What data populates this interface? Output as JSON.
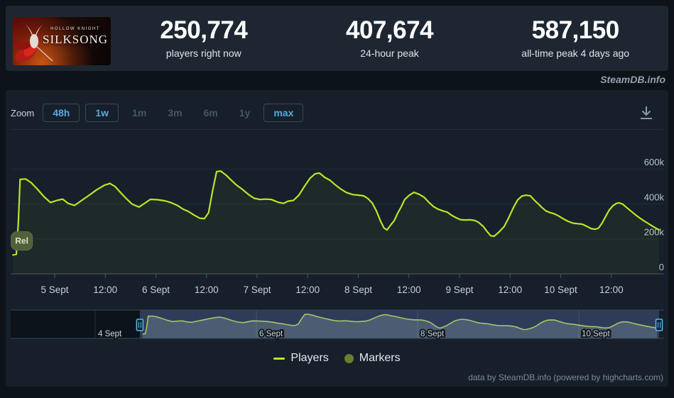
{
  "header": {
    "capsule": {
      "title_top": "HOLLOW KNIGHT",
      "title": "SILKSONG"
    },
    "stats": [
      {
        "value": "250,774",
        "label": "players right now"
      },
      {
        "value": "407,674",
        "label": "24-hour peak"
      },
      {
        "value": "587,150",
        "label": "all-time peak 4 days ago"
      }
    ]
  },
  "watermark": "SteamDB.info",
  "toolbar": {
    "zoom_label": "Zoom",
    "buttons": [
      {
        "label": "48h",
        "enabled": true,
        "active": false
      },
      {
        "label": "1w",
        "enabled": true,
        "active": true
      },
      {
        "label": "1m",
        "enabled": false,
        "active": false
      },
      {
        "label": "3m",
        "enabled": false,
        "active": false
      },
      {
        "label": "6m",
        "enabled": false,
        "active": false
      },
      {
        "label": "1y",
        "enabled": false,
        "active": false
      },
      {
        "label": "max",
        "enabled": true,
        "active": false
      }
    ],
    "download_icon": "download-icon"
  },
  "legend": {
    "items": [
      {
        "label": "Players",
        "symbol": "line",
        "color": "#bce428"
      },
      {
        "label": "Markers",
        "symbol": "circle",
        "color": "#6d7c31"
      }
    ]
  },
  "credits": "data by SteamDB.info (powered by highcharts.com)",
  "chart_data": {
    "type": "line",
    "title": "Concurrent players",
    "xlabel": "",
    "ylabel": "players",
    "x_unit": "hours since 4 Sept 00:00",
    "ylim": [
      0,
      600000
    ],
    "grid": true,
    "legend_position": "bottom",
    "line_color": "#bce428",
    "x_ticks": [
      {
        "h": 24,
        "label": "5 Sept"
      },
      {
        "h": 36,
        "label": "12:00"
      },
      {
        "h": 48,
        "label": "6 Sept"
      },
      {
        "h": 60,
        "label": "12:00"
      },
      {
        "h": 72,
        "label": "7 Sept"
      },
      {
        "h": 84,
        "label": "12:00"
      },
      {
        "h": 96,
        "label": "8 Sept"
      },
      {
        "h": 108,
        "label": "12:00"
      },
      {
        "h": 120,
        "label": "9 Sept"
      },
      {
        "h": 132,
        "label": "12:00"
      },
      {
        "h": 144,
        "label": "10 Sept"
      },
      {
        "h": 156,
        "label": "12:00"
      }
    ],
    "y_ticks": [
      {
        "v": 0,
        "label": "0"
      },
      {
        "v": 200000,
        "label": "200k"
      },
      {
        "v": 400000,
        "label": "400k"
      },
      {
        "v": 600000,
        "label": "600k"
      }
    ],
    "marker": {
      "label": "Rel",
      "h": 16.2,
      "v": 188000
    },
    "navigator": {
      "ticks": [
        {
          "h": 0,
          "label": "4 Sept"
        },
        {
          "h": 48,
          "label": "6 Sept"
        },
        {
          "h": 96,
          "label": "8 Sept"
        },
        {
          "h": 144,
          "label": "10 Sept"
        }
      ],
      "selection": {
        "from_h": 13.3,
        "to_h": 167.9
      }
    },
    "series": [
      {
        "name": "Players",
        "points": [
          [
            14.1,
            108000
          ],
          [
            14.9,
            112000
          ],
          [
            15.4,
            300000
          ],
          [
            15.8,
            540000
          ],
          [
            17.1,
            543000
          ],
          [
            18.4,
            522000
          ],
          [
            19.8,
            487000
          ],
          [
            21.5,
            440000
          ],
          [
            23.0,
            408000
          ],
          [
            24.5,
            420000
          ],
          [
            25.9,
            427000
          ],
          [
            27.2,
            403000
          ],
          [
            28.7,
            391000
          ],
          [
            30.4,
            420000
          ],
          [
            32.3,
            452000
          ],
          [
            33.9,
            480000
          ],
          [
            35.8,
            507000
          ],
          [
            37.1,
            517000
          ],
          [
            38.3,
            500000
          ],
          [
            39.7,
            463000
          ],
          [
            41.0,
            430000
          ],
          [
            42.4,
            398000
          ],
          [
            44.0,
            382000
          ],
          [
            45.6,
            408000
          ],
          [
            46.7,
            426000
          ],
          [
            48.4,
            424000
          ],
          [
            50.1,
            418000
          ],
          [
            51.5,
            408000
          ],
          [
            53.1,
            391000
          ],
          [
            54.5,
            369000
          ],
          [
            55.7,
            357000
          ],
          [
            57.0,
            337000
          ],
          [
            58.4,
            318000
          ],
          [
            59.5,
            316000
          ],
          [
            60.5,
            350000
          ],
          [
            61.4,
            470000
          ],
          [
            62.4,
            585000
          ],
          [
            63.4,
            588000
          ],
          [
            64.6,
            565000
          ],
          [
            65.8,
            537000
          ],
          [
            67.1,
            508000
          ],
          [
            68.5,
            483000
          ],
          [
            70.0,
            453000
          ],
          [
            71.3,
            432000
          ],
          [
            72.7,
            425000
          ],
          [
            74.0,
            427000
          ],
          [
            75.4,
            425000
          ],
          [
            76.9,
            410000
          ],
          [
            78.2,
            403000
          ],
          [
            79.4,
            416000
          ],
          [
            80.6,
            420000
          ],
          [
            81.9,
            450000
          ],
          [
            83.3,
            503000
          ],
          [
            84.6,
            548000
          ],
          [
            85.8,
            573000
          ],
          [
            86.8,
            576000
          ],
          [
            88.0,
            552000
          ],
          [
            89.3,
            535000
          ],
          [
            90.5,
            510000
          ],
          [
            91.9,
            484000
          ],
          [
            93.2,
            465000
          ],
          [
            94.7,
            453000
          ],
          [
            96.1,
            450000
          ],
          [
            97.3,
            446000
          ],
          [
            98.3,
            430000
          ],
          [
            99.3,
            405000
          ],
          [
            100.3,
            360000
          ],
          [
            101.3,
            300000
          ],
          [
            102.1,
            262000
          ],
          [
            102.8,
            251000
          ],
          [
            103.7,
            280000
          ],
          [
            104.5,
            304000
          ],
          [
            105.3,
            345000
          ],
          [
            106.2,
            385000
          ],
          [
            107.0,
            425000
          ],
          [
            108.0,
            448000
          ],
          [
            109.2,
            466000
          ],
          [
            110.4,
            455000
          ],
          [
            111.6,
            438000
          ],
          [
            112.6,
            412000
          ],
          [
            113.8,
            385000
          ],
          [
            114.9,
            370000
          ],
          [
            116.1,
            360000
          ],
          [
            117.1,
            353000
          ],
          [
            118.1,
            335000
          ],
          [
            119.1,
            322000
          ],
          [
            120.2,
            310000
          ],
          [
            121.3,
            308000
          ],
          [
            122.5,
            309000
          ],
          [
            123.5,
            306000
          ],
          [
            124.5,
            295000
          ],
          [
            125.6,
            272000
          ],
          [
            126.6,
            240000
          ],
          [
            127.4,
            218000
          ],
          [
            128.2,
            215000
          ],
          [
            129.4,
            240000
          ],
          [
            130.6,
            271000
          ],
          [
            131.6,
            318000
          ],
          [
            132.8,
            380000
          ],
          [
            133.8,
            423000
          ],
          [
            134.8,
            445000
          ],
          [
            135.8,
            450000
          ],
          [
            136.8,
            446000
          ],
          [
            137.8,
            420000
          ],
          [
            138.7,
            400000
          ],
          [
            139.5,
            380000
          ],
          [
            140.5,
            360000
          ],
          [
            141.5,
            350000
          ],
          [
            142.6,
            342000
          ],
          [
            143.6,
            330000
          ],
          [
            144.6,
            315000
          ],
          [
            145.8,
            300000
          ],
          [
            146.9,
            290000
          ],
          [
            148.0,
            287000
          ],
          [
            149.1,
            284000
          ],
          [
            150.3,
            270000
          ],
          [
            151.3,
            258000
          ],
          [
            152.2,
            255000
          ],
          [
            153.0,
            262000
          ],
          [
            153.8,
            290000
          ],
          [
            154.7,
            330000
          ],
          [
            155.5,
            365000
          ],
          [
            156.4,
            390000
          ],
          [
            157.2,
            403000
          ],
          [
            157.9,
            406000
          ],
          [
            158.7,
            398000
          ],
          [
            159.6,
            380000
          ],
          [
            160.6,
            360000
          ],
          [
            161.6,
            340000
          ],
          [
            162.6,
            322000
          ],
          [
            163.6,
            305000
          ],
          [
            164.6,
            290000
          ],
          [
            165.6,
            275000
          ],
          [
            166.5,
            262000
          ],
          [
            167.3,
            252000
          ]
        ]
      }
    ]
  }
}
